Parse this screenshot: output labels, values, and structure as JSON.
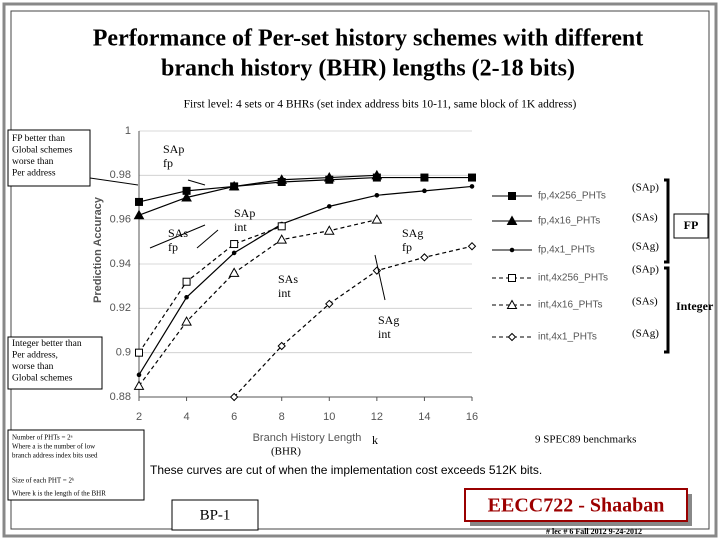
{
  "slide": {
    "title_lines": [
      "Performance of Per-set history schemes with different",
      "branch history (BHR) lengths (2-18 bits)"
    ],
    "subtitle": "First level:  4 sets  or 4 BHRs    (set index address bits 10-11,  same block of 1K address)",
    "fp_note": [
      "FP better than",
      "Global schemes",
      "worse than",
      "Per address"
    ],
    "int_note": [
      "Integer better than",
      "Per address,",
      "worse than",
      "Global schemes"
    ],
    "pht_note": [
      "Number of PHTs = 2ᵃ",
      "Where a is the number of low",
      "branch address index bits used"
    ],
    "size_note": [
      "Size of each PHT = 2ᵏ",
      "Where k is the length of the BHR"
    ],
    "benchmarks": "9 SPEC89 benchmarks",
    "cutoff": "These curves are cut of when the implementation cost exceeds 512K bits.",
    "slide_id": "BP-1",
    "course": "EECC722 - Shaaban",
    "footer": "#  lec # 6   Fall 2012   9-24-2012"
  },
  "chart_data": {
    "type": "line",
    "x_label": "Branch History Length",
    "y_label": "Prediction Accuracy",
    "x": [
      2,
      4,
      6,
      8,
      10,
      12,
      14,
      16
    ],
    "xlim": [
      2,
      16
    ],
    "xticks": [
      2,
      4,
      6,
      8,
      10,
      12,
      14,
      16
    ],
    "ylim": [
      0.88,
      1
    ],
    "yticks": [
      0.88,
      0.9,
      0.92,
      0.94,
      0.96,
      0.98,
      1
    ],
    "grid": true,
    "series": [
      {
        "name": "fp,4x256_PHTs",
        "color": "#000000",
        "marker": "square",
        "dashed": false,
        "values": [
          0.968,
          0.973,
          0.975,
          0.977,
          0.978,
          0.979,
          0.979,
          0.979
        ]
      },
      {
        "name": "fp,4x16_PHTs",
        "color": "#000000",
        "marker": "triangle",
        "dashed": false,
        "values": [
          0.962,
          0.97,
          0.975,
          0.978,
          0.979,
          0.98,
          null,
          null
        ]
      },
      {
        "name": "fp,4x1_PHTs",
        "color": "#000000",
        "marker": "dot",
        "dashed": false,
        "values": [
          0.89,
          0.925,
          0.945,
          0.958,
          0.966,
          0.971,
          0.973,
          0.975
        ]
      },
      {
        "name": "int,4x256_PHTs",
        "color": "#000000",
        "marker": "square-open",
        "dashed": true,
        "values": [
          0.9,
          0.932,
          0.949,
          0.957,
          null,
          null,
          null,
          null
        ]
      },
      {
        "name": "int,4x16_PHTs",
        "color": "#000000",
        "marker": "triangle-open",
        "dashed": true,
        "values": [
          0.885,
          0.914,
          0.936,
          0.951,
          0.955,
          0.96,
          null,
          null
        ]
      },
      {
        "name": "int,4x1_PHTs",
        "color": "#000000",
        "marker": "diamond-open",
        "dashed": true,
        "values": [
          null,
          null,
          0.88,
          0.903,
          0.922,
          0.937,
          0.943,
          0.948
        ]
      }
    ],
    "scheme_labels": [
      "(SAp)",
      "(SAs)",
      "(SAg)",
      "(SAp)",
      "(SAs)",
      "(SAg)"
    ],
    "group_labels": [
      "FP",
      "Integer"
    ],
    "annotations": [
      [
        "SAp",
        "fp"
      ],
      [
        "SAs",
        "fp"
      ],
      [
        "SAp",
        "int"
      ],
      [
        "SAg",
        "fp"
      ],
      [
        "SAs",
        "int"
      ],
      [
        "SAg",
        "int"
      ]
    ],
    "k_label": "k",
    "bhr_label": "(BHR)"
  }
}
